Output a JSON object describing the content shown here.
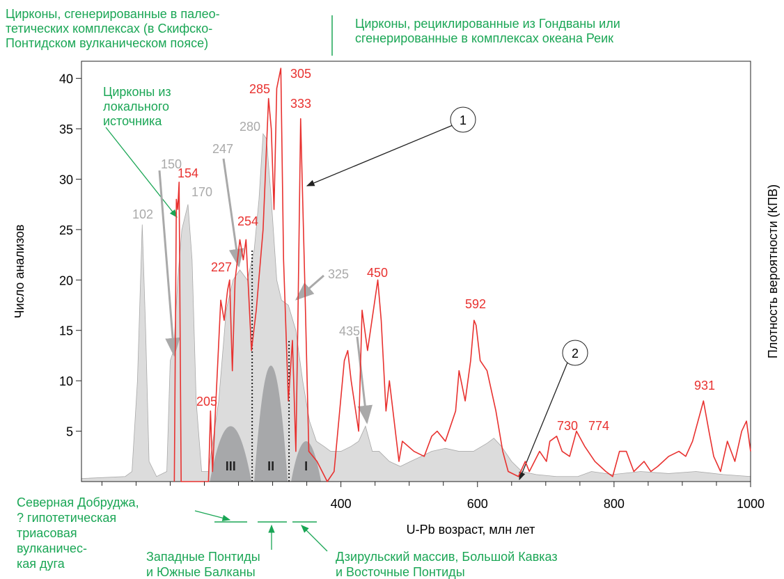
{
  "chart_data": {
    "type": "line",
    "xlabel": "U-Pb возраст, млн лет",
    "ylabel": "Число анализов",
    "y2label": "Плотность вероятности (КПВ)",
    "xlim": [
      20,
      1000
    ],
    "xticks": [
      400,
      600,
      800,
      1000
    ],
    "xminorticks": [
      50,
      100,
      150,
      200,
      250,
      300,
      350,
      450,
      500,
      550,
      650,
      700,
      750,
      850,
      900,
      950
    ],
    "ylim": [
      0,
      41.7
    ],
    "yticks": [
      5,
      10,
      15,
      20,
      25,
      30,
      35,
      40
    ],
    "histogram": {
      "color": "#e8312f",
      "x": [
        156,
        159,
        161,
        163,
        166,
        206,
        209,
        212,
        224,
        229,
        234,
        237,
        241,
        245,
        252,
        257,
        261,
        269,
        276,
        286,
        294,
        298,
        302,
        306,
        312,
        316,
        323,
        329,
        334,
        337,
        341,
        347,
        353,
        365,
        380,
        390,
        405,
        410,
        415,
        426,
        431,
        439,
        454,
        459,
        466,
        471,
        485,
        490,
        507,
        522,
        533,
        541,
        553,
        568,
        573,
        582,
        590,
        595,
        598,
        604,
        614,
        627,
        637,
        645,
        660,
        670,
        676,
        691,
        701,
        706,
        716,
        724,
        735,
        745,
        757,
        772,
        788,
        798,
        808,
        818,
        829,
        844,
        854,
        864,
        880,
        895,
        905,
        915,
        931,
        939,
        946,
        956,
        966,
        977,
        987,
        994,
        1000
      ],
      "values": [
        0,
        28,
        27,
        29.7,
        0,
        0,
        7,
        1,
        18,
        16,
        19,
        20,
        11,
        20,
        24,
        22,
        24,
        13,
        17,
        25,
        38,
        35,
        27,
        39,
        41,
        22,
        8,
        14,
        3,
        16,
        36,
        20,
        3,
        2,
        0,
        1,
        12,
        13,
        10,
        5,
        17,
        13,
        20,
        16,
        7,
        10,
        2,
        4,
        3,
        2.5,
        4.5,
        5,
        4,
        7,
        11,
        8,
        12,
        16,
        15.5,
        12,
        11,
        7,
        3,
        1,
        0.5,
        2,
        1,
        3,
        2,
        4,
        4.5,
        3,
        2.5,
        5,
        3.5,
        2,
        1,
        0.5,
        3,
        3,
        1,
        2,
        1,
        1.5,
        2.5,
        3,
        2.5,
        4,
        8,
        5,
        2.5,
        1,
        4,
        2,
        5,
        6,
        3
      ]
    },
    "density": {
      "color": "#dcdcdc",
      "x": [
        20,
        84,
        94,
        102,
        109,
        114,
        119,
        130,
        145,
        150,
        155,
        161,
        167,
        176,
        182,
        188,
        196,
        206,
        221,
        232,
        242,
        252,
        263,
        273,
        280,
        286,
        291,
        298,
        306,
        313,
        323,
        334,
        344,
        354,
        364,
        375,
        385,
        400,
        415,
        426,
        436,
        446,
        456,
        471,
        487,
        502,
        518,
        533,
        553,
        573,
        594,
        614,
        624,
        635,
        650,
        665,
        686,
        716,
        747,
        767,
        798,
        839,
        880,
        920,
        960,
        1000
      ],
      "values": [
        0.3,
        0.5,
        1,
        10,
        25.5,
        15,
        2,
        0.5,
        1,
        12,
        13,
        20,
        25,
        27.5,
        22,
        8,
        1,
        1,
        8,
        17,
        20,
        21,
        20,
        23,
        28,
        34.5,
        34,
        28,
        20,
        18,
        17.5,
        15,
        10,
        6,
        4,
        3.5,
        3,
        3,
        3.5,
        4,
        5.5,
        3,
        3,
        2,
        1.5,
        2,
        2.5,
        3,
        3.3,
        3,
        3,
        3.8,
        4.3,
        3.5,
        2,
        1,
        0.7,
        0.5,
        0.5,
        1,
        0.7,
        1,
        0.8,
        1,
        0.7,
        0.5
      ]
    },
    "complexes": [
      {
        "label": "III",
        "from": 208,
        "to": 269,
        "peak": 5.5
      },
      {
        "label": "II",
        "from": 273,
        "to": 322,
        "peak": 11.5
      },
      {
        "label": "I",
        "from": 327,
        "to": 371,
        "peak": 4
      }
    ],
    "boundaries": [
      {
        "x": 270,
        "top": 23
      },
      {
        "x": 324,
        "top": 14
      }
    ],
    "red_peak_labels": [
      154,
      205,
      227,
      254,
      285,
      305,
      333,
      450,
      592,
      730,
      774,
      931
    ],
    "gray_peak_labels": [
      102,
      150,
      170,
      247,
      280,
      325,
      435
    ],
    "annotations": {
      "paleotethys": [
        "Цирконы, сгенерированные в палео-",
        "тетических комплексах (в Скифско-",
        "Понтидском вулканическом поясе)"
      ],
      "gondwana": [
        "Цирконы, рециклированные из Гондваны или",
        "сгенерированные в комплексах океана Реик"
      ],
      "local": [
        "Цирконы из",
        "локального",
        "источника"
      ],
      "marker1": "1",
      "marker2": "2",
      "dobrudja": [
        "Северная Добруджа,",
        "? гипотетическая",
        "триасовая",
        "вулканичес-",
        "кая дуга"
      ],
      "pontides": [
        "Западные Понтиды",
        "и Южные Балканы"
      ],
      "dzirula": [
        "Дзирульский массив, Большой Кавказ",
        "и Восточные Понтиды"
      ]
    }
  }
}
